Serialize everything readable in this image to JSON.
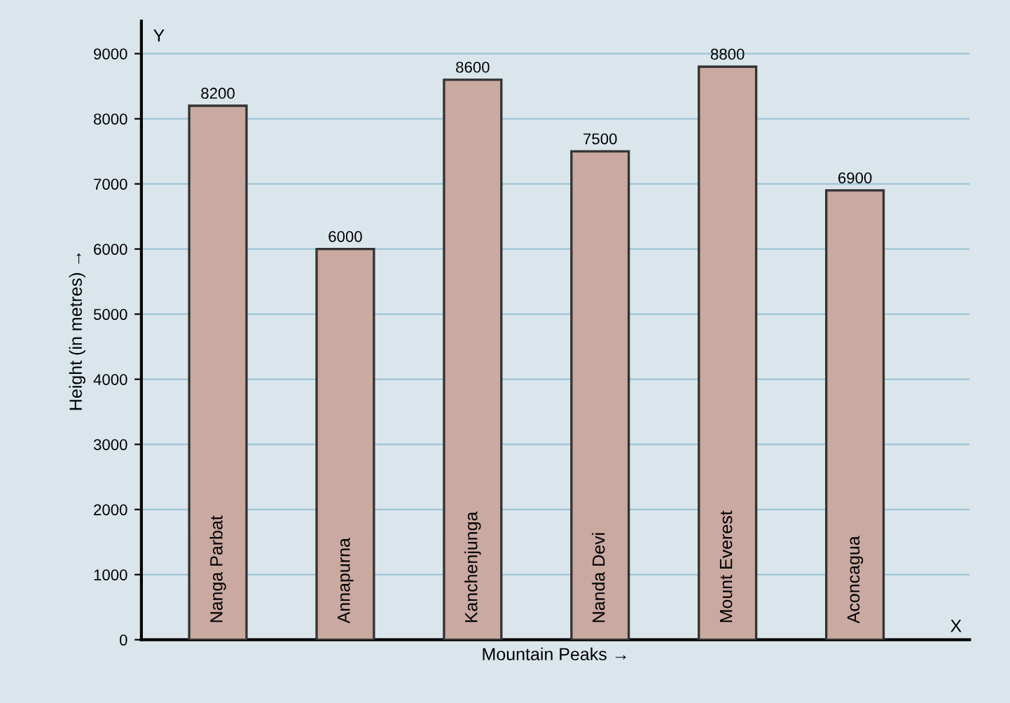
{
  "chart_data": {
    "type": "bar",
    "xlabel": "Mountain Peaks →",
    "ylabel": "Height (in metres) →",
    "annotations": [
      "Y",
      "X"
    ],
    "categories": [
      "Nanga Parbat",
      "Annapurna",
      "Kanchenjunga",
      "Nanda Devi",
      "Mount Everest",
      "Aconcagua"
    ],
    "values": [
      8200,
      6000,
      8600,
      7500,
      8800,
      6900
    ],
    "color": "#c9a9a0",
    "data_labels": true,
    "ylim": [
      0,
      9500
    ],
    "yticks": [
      0,
      1000,
      2000,
      3000,
      4000,
      5000,
      6000,
      7000,
      8000,
      9000
    ],
    "grid": true
  }
}
